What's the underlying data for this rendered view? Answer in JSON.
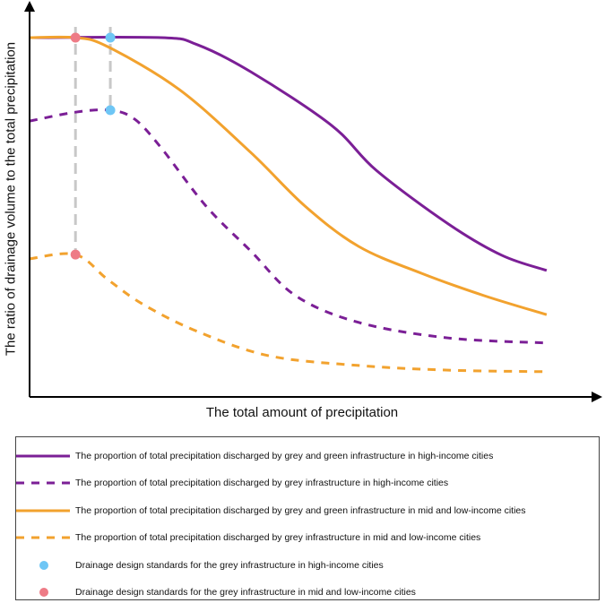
{
  "chart_data": {
    "type": "line",
    "xlabel": "The total amount of precipitation",
    "ylabel": "The ratio of drainage volume to the total precipitation",
    "xlim": [
      0,
      100
    ],
    "ylim": [
      0,
      100
    ],
    "grid": false,
    "legend_placement": "bottom",
    "series": [
      {
        "name": "The proportion of total precipitation discharged by grey and green infrastructure in high-income cities",
        "color": "#7b1f96",
        "dashed": false,
        "x": [
          0,
          23.8,
          30.3,
          40,
          54.6,
          62.7,
          75.7,
          85.4,
          93.5
        ],
        "y": [
          92.6,
          92.6,
          90.8,
          83.8,
          70,
          58.4,
          44.6,
          36.5,
          32.6
        ]
      },
      {
        "name": "The proportion of total precipitation discharged by grey infrastructure in high-income cities",
        "color": "#7b1f96",
        "dashed": true,
        "x": [
          0,
          8.3,
          14.6,
          19,
          23.8,
          31.9,
          40,
          48.1,
          59.5,
          75.7,
          93.5
        ],
        "y": [
          71.1,
          73.4,
          73.9,
          71.6,
          64.2,
          49.2,
          37.6,
          26.1,
          19.2,
          15.2,
          13.9
        ]
      },
      {
        "name": "The proportion of total precipitation discharged by grey and green infrastructure in mid and low-income cities",
        "color": "#f2a22e",
        "dashed": false,
        "x": [
          0,
          8.3,
          14.1,
          27.1,
          40,
          49.8,
          59.5,
          70.8,
          82.2,
          93.5
        ],
        "y": [
          92.6,
          92.6,
          90.3,
          79.2,
          63,
          49.2,
          38.8,
          31.9,
          26.1,
          21.2
        ]
      },
      {
        "name": "The proportion of total precipitation discharged by grey infrastructure in mid and low-income cities",
        "color": "#f2a22e",
        "dashed": true,
        "x": [
          0,
          8.3,
          14.1,
          20.6,
          30.3,
          43.3,
          59.5,
          75.7,
          93.5
        ],
        "y": [
          35.6,
          36.7,
          30.3,
          23.8,
          16.9,
          10.6,
          8.1,
          6.9,
          6.5
        ]
      }
    ],
    "markers": [
      {
        "name": "Drainage design standards for the grey infrastructure in high-income cities",
        "color": "#6ec6f5",
        "points": [
          {
            "x": 14.6,
            "y": 92.6
          },
          {
            "x": 14.6,
            "y": 73.9
          }
        ]
      },
      {
        "name": "Drainage design standards for the grey infrastructure in mid and low-income cities",
        "color": "#ee7b86",
        "points": [
          {
            "x": 8.3,
            "y": 92.6
          },
          {
            "x": 8.3,
            "y": 36.7
          }
        ]
      }
    ]
  }
}
